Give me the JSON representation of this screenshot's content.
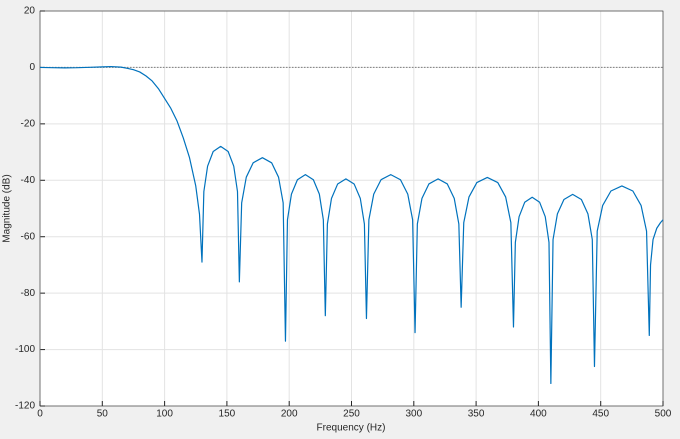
{
  "chart_data": {
    "type": "line",
    "xlabel": "Frequency (Hz)",
    "ylabel": "Magnitude (dB)",
    "xlim": [
      0,
      500
    ],
    "ylim": [
      -120,
      20
    ],
    "xticks": [
      0,
      50,
      100,
      150,
      200,
      250,
      300,
      350,
      400,
      450,
      500
    ],
    "yticks": [
      -120,
      -100,
      -80,
      -60,
      -40,
      -20,
      0,
      20
    ],
    "grid": true,
    "hline": 0,
    "color": "#0072bd",
    "x": [
      0,
      10,
      20,
      30,
      40,
      50,
      57,
      65,
      70,
      75,
      80,
      85,
      90,
      95,
      100,
      105,
      110,
      115,
      120,
      125,
      128,
      130,
      131.5,
      134.5,
      139,
      145,
      151,
      155.5,
      158.5,
      160,
      161.85,
      165.55,
      171.1,
      178.5,
      185.9,
      191.45,
      195.15,
      197,
      198.6,
      201.8,
      206.6,
      213,
      219.4,
      224.2,
      227.4,
      229,
      230.65,
      233.95,
      238.9,
      245.5,
      252.1,
      257.05,
      260.35,
      262,
      263.95,
      267.85,
      273.7,
      281.5,
      289.3,
      295.15,
      299.05,
      301,
      302.85,
      306.55,
      312.1,
      319.5,
      326.9,
      332.45,
      336.15,
      338,
      340.1,
      344.3,
      350.6,
      359,
      367.4,
      373.7,
      377.9,
      380,
      381.5,
      384.5,
      389,
      395,
      401,
      405.5,
      408.5,
      410,
      411.75,
      415.25,
      420.5,
      427.5,
      434.5,
      439.75,
      443.25,
      445,
      447.2,
      451.6,
      458.2,
      467,
      475.8,
      482.4,
      486.8,
      489,
      490,
      492,
      495,
      498,
      500
    ],
    "values": [
      0,
      -0.1,
      -0.15,
      -0.1,
      0.05,
      0.2,
      0.3,
      0.1,
      -0.3,
      -0.8,
      -1.6,
      -3,
      -4.8,
      -7.5,
      -11,
      -14.5,
      -19,
      -25,
      -32,
      -42,
      -52,
      -69,
      -44,
      -35,
      -29.8,
      -28,
      -29.8,
      -35,
      -44,
      -76,
      -48,
      -38.9,
      -33.8,
      -32,
      -33.8,
      -38.9,
      -48,
      -97,
      -54,
      -44.9,
      -39.8,
      -38,
      -39.8,
      -44.9,
      -54,
      -88,
      -55.5,
      -46.4,
      -41.3,
      -39.5,
      -41.3,
      -46.4,
      -55.5,
      -89,
      -54,
      -44.9,
      -39.8,
      -38,
      -39.8,
      -44.9,
      -54,
      -94,
      -55.5,
      -46.4,
      -41.3,
      -39.5,
      -41.3,
      -46.4,
      -55.5,
      -85,
      -55,
      -45.9,
      -40.8,
      -39,
      -40.8,
      -45.9,
      -55,
      -92,
      -62,
      -52.9,
      -47.8,
      -46,
      -47.8,
      -52.9,
      -62,
      -112,
      -61,
      -51.9,
      -46.8,
      -45,
      -46.8,
      -51.9,
      -61,
      -106,
      -58,
      -48.9,
      -43.8,
      -42,
      -43.8,
      -48.9,
      -58,
      -95,
      -70,
      -61,
      -57,
      -55,
      -54
    ]
  }
}
